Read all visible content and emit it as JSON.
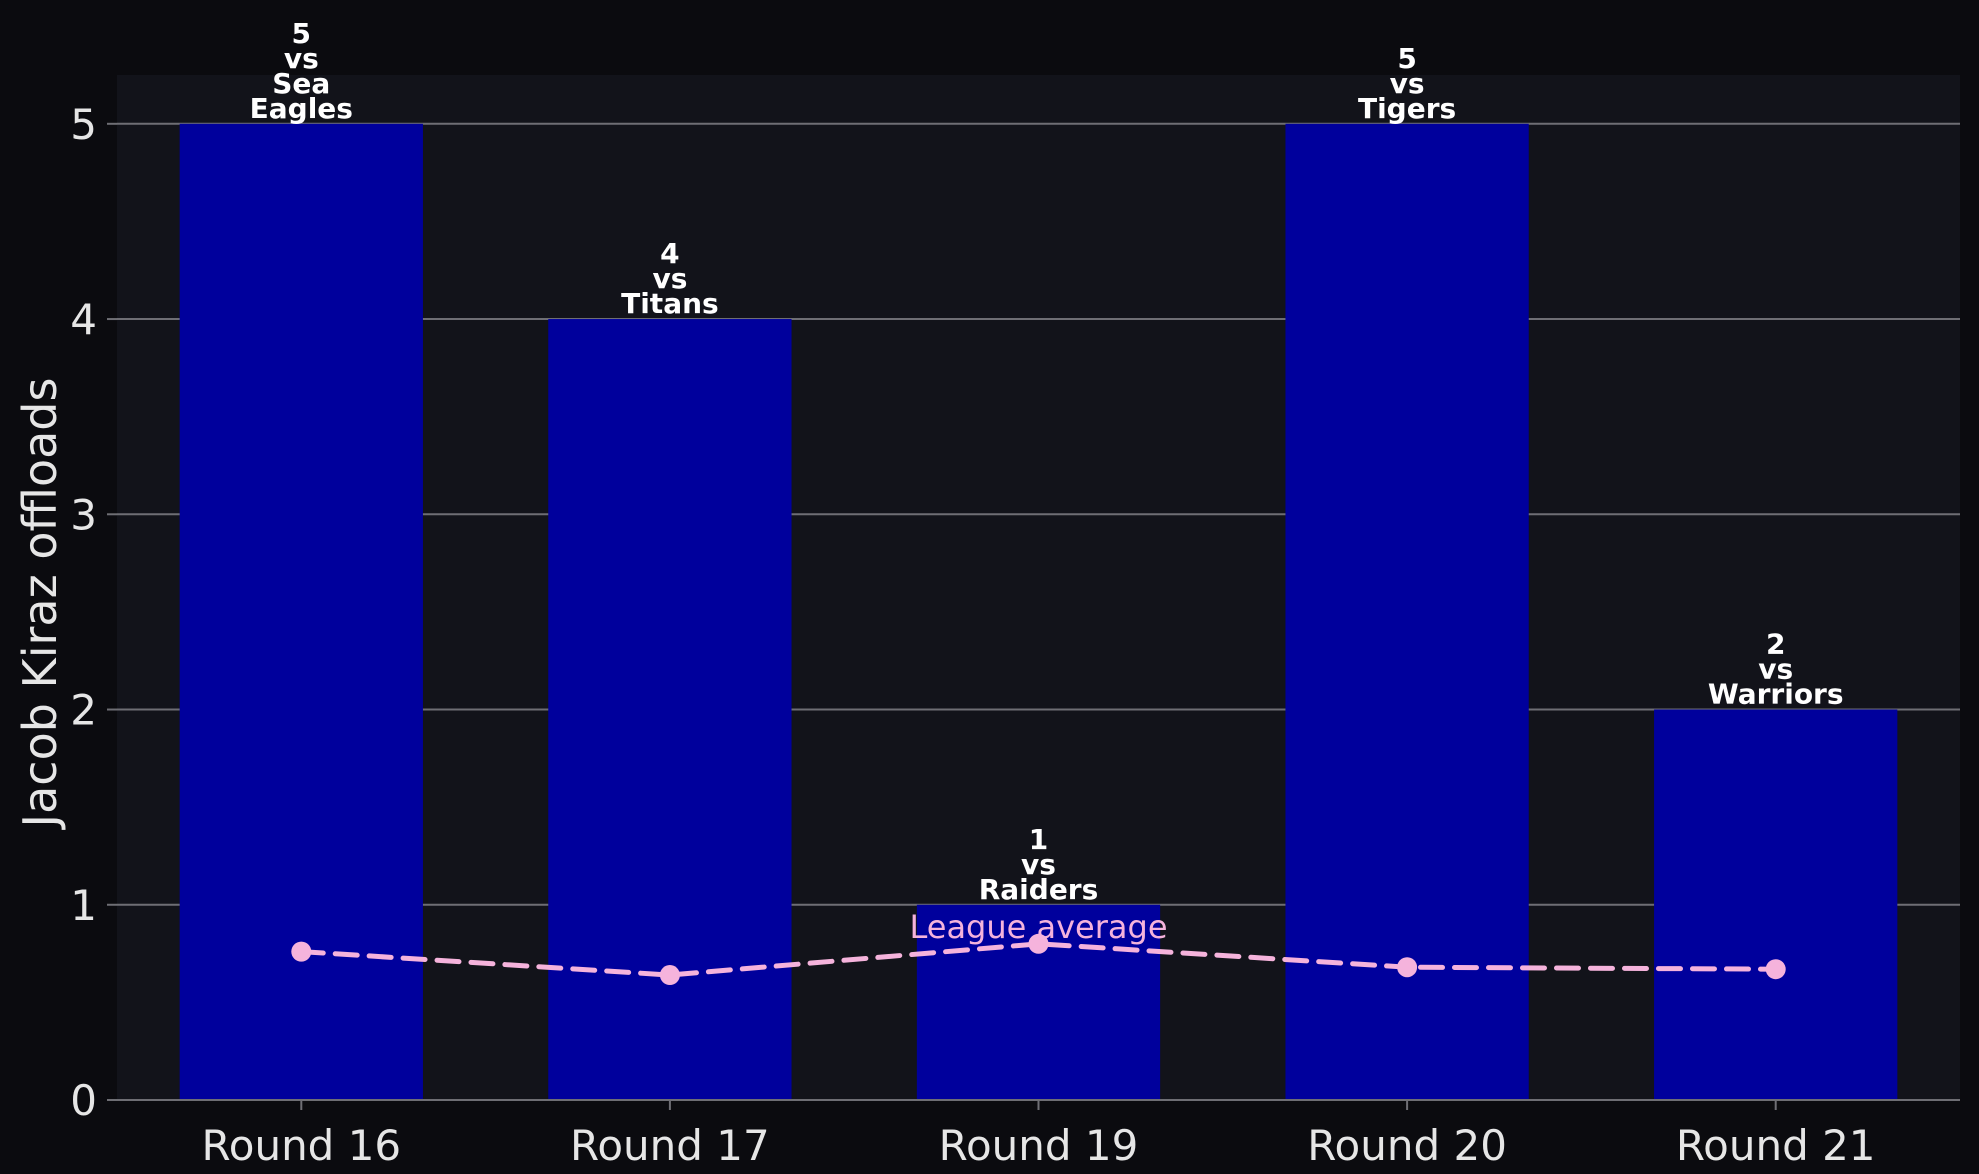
{
  "chart_data": {
    "type": "bar",
    "categories": [
      "Round 16",
      "Round 17",
      "Round 19",
      "Round 20",
      "Round 21"
    ],
    "values": [
      5,
      4,
      1,
      5,
      2
    ],
    "bar_labels": [
      [
        "5",
        "vs",
        "Sea",
        "Eagles"
      ],
      [
        "4",
        "vs",
        "Titans"
      ],
      [
        "1",
        "vs",
        "Raiders"
      ],
      [
        "5",
        "vs",
        "Tigers"
      ],
      [
        "2",
        "vs",
        "Warriors"
      ]
    ],
    "series": [
      {
        "name": "Jacob Kiraz offloads",
        "values": [
          5,
          4,
          1,
          5,
          2
        ]
      },
      {
        "name": "League average",
        "values": [
          0.76,
          0.64,
          0.8,
          0.68,
          0.67
        ]
      }
    ],
    "line_annotation": "League average",
    "title": "",
    "xlabel": "",
    "ylabel": "Jacob Kiraz offloads",
    "ylim": [
      0,
      5.25
    ],
    "yticks": [
      0,
      1,
      2,
      3,
      4,
      5
    ],
    "grid": "horizontal",
    "legend": "none",
    "colors": {
      "bar": "#00009c",
      "line": "#f5b3dc",
      "plot_background": "#12131a",
      "figure_background": "#0b0b0f",
      "grid": "#6e6e74"
    }
  }
}
